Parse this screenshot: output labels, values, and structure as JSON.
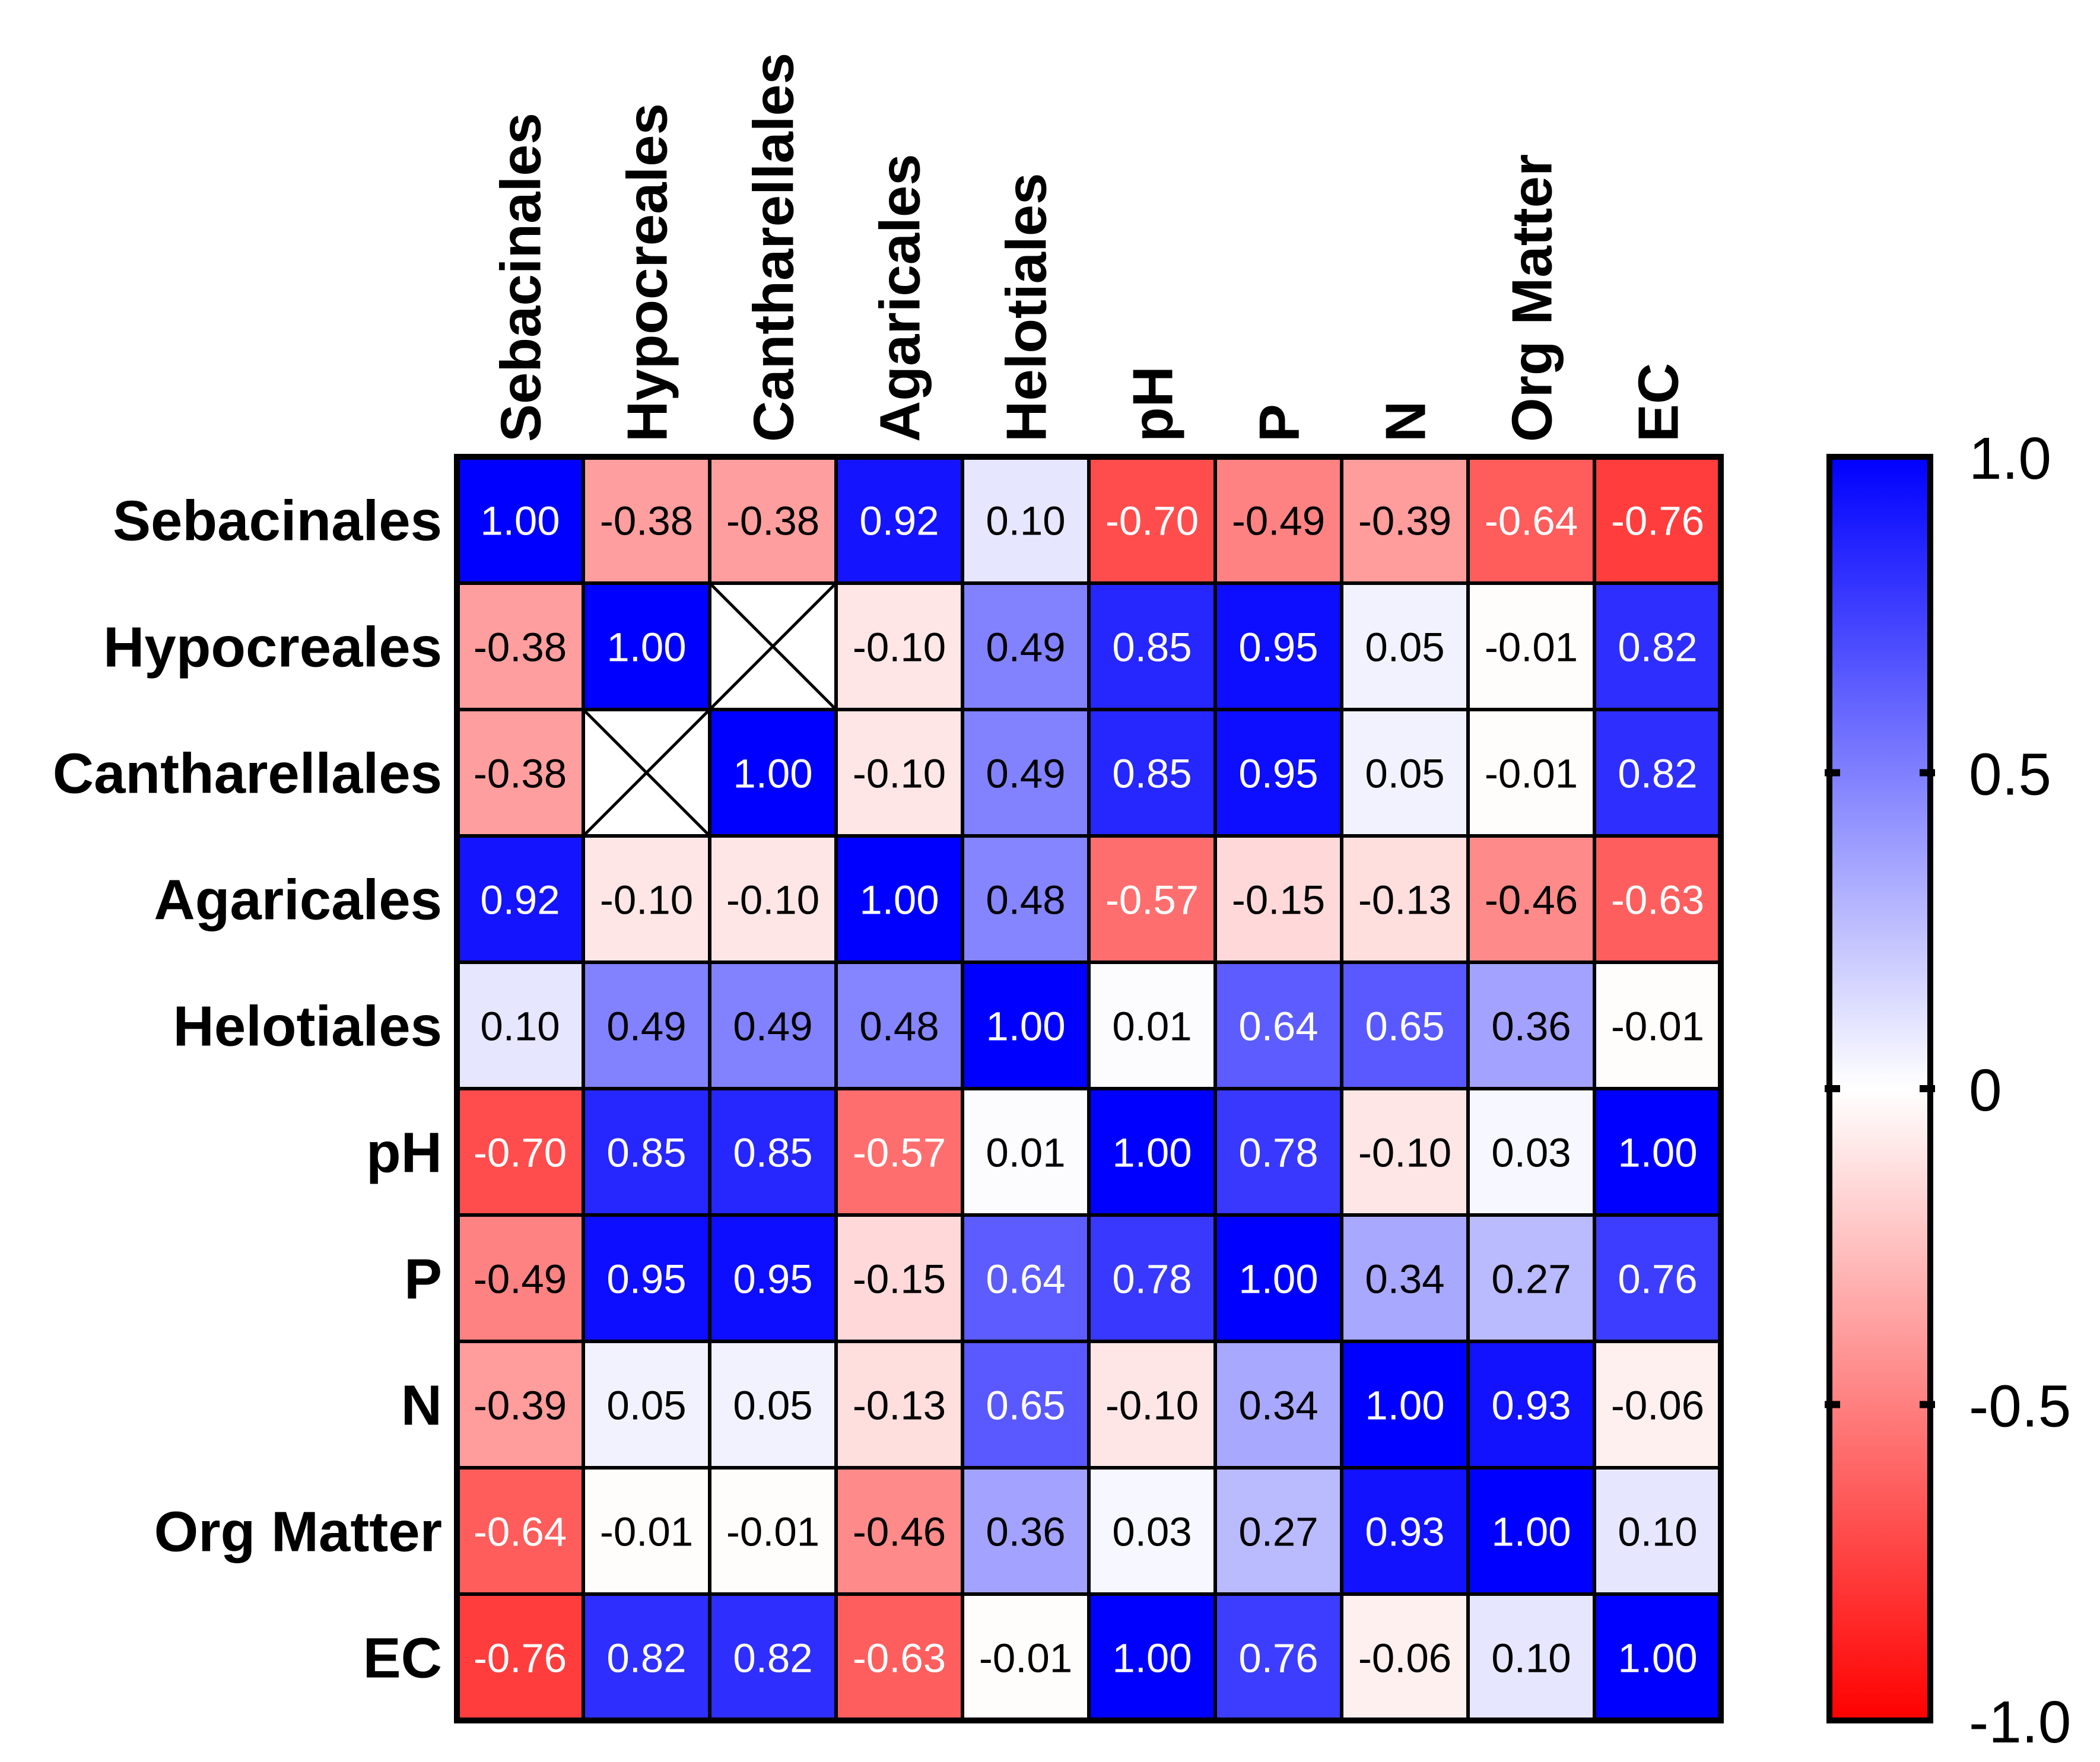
{
  "chart_data": {
    "type": "heatmap",
    "title": "",
    "row_labels": [
      "Sebacinales",
      "Hypocreales",
      "Cantharellales",
      "Agaricales",
      "Helotiales",
      "pH",
      "P",
      "N",
      "Org Matter",
      "EC"
    ],
    "col_labels": [
      "Sebacinales",
      "Hypocreales",
      "Cantharellales",
      "Agaricales",
      "Helotiales",
      "pH",
      "P",
      "N",
      "Org Matter",
      "EC"
    ],
    "values": [
      [
        1.0,
        -0.38,
        -0.38,
        0.92,
        0.1,
        -0.7,
        -0.49,
        -0.39,
        -0.64,
        -0.76
      ],
      [
        -0.38,
        1.0,
        null,
        -0.1,
        0.49,
        0.85,
        0.95,
        0.05,
        -0.01,
        0.82
      ],
      [
        -0.38,
        null,
        1.0,
        -0.1,
        0.49,
        0.85,
        0.95,
        0.05,
        -0.01,
        0.82
      ],
      [
        0.92,
        -0.1,
        -0.1,
        1.0,
        0.48,
        -0.57,
        -0.15,
        -0.13,
        -0.46,
        -0.63
      ],
      [
        0.1,
        0.49,
        0.49,
        0.48,
        1.0,
        0.01,
        0.64,
        0.65,
        0.36,
        -0.01
      ],
      [
        -0.7,
        0.85,
        0.85,
        -0.57,
        0.01,
        1.0,
        0.78,
        -0.1,
        0.03,
        1.0
      ],
      [
        -0.49,
        0.95,
        0.95,
        -0.15,
        0.64,
        0.78,
        1.0,
        0.34,
        0.27,
        0.76
      ],
      [
        -0.39,
        0.05,
        0.05,
        -0.13,
        0.65,
        -0.1,
        0.34,
        1.0,
        0.93,
        -0.06
      ],
      [
        -0.64,
        -0.01,
        -0.01,
        -0.46,
        0.36,
        0.03,
        0.27,
        0.93,
        1.0,
        0.1
      ],
      [
        -0.76,
        0.82,
        0.82,
        -0.63,
        -0.01,
        1.0,
        0.76,
        -0.06,
        0.1,
        1.0
      ]
    ],
    "value_format": "2 decimals",
    "missing_marker": "X",
    "color_scale": {
      "min": -1.0,
      "max": 1.0,
      "min_color": "#ff0000",
      "mid_color": "#ffffff",
      "max_color": "#0000ff",
      "tick_values": [
        1.0,
        0.5,
        0,
        -0.5,
        -1.0
      ],
      "tick_labels": [
        "1.0",
        "0.5",
        "0",
        "-0.5",
        "-1.0"
      ]
    }
  }
}
